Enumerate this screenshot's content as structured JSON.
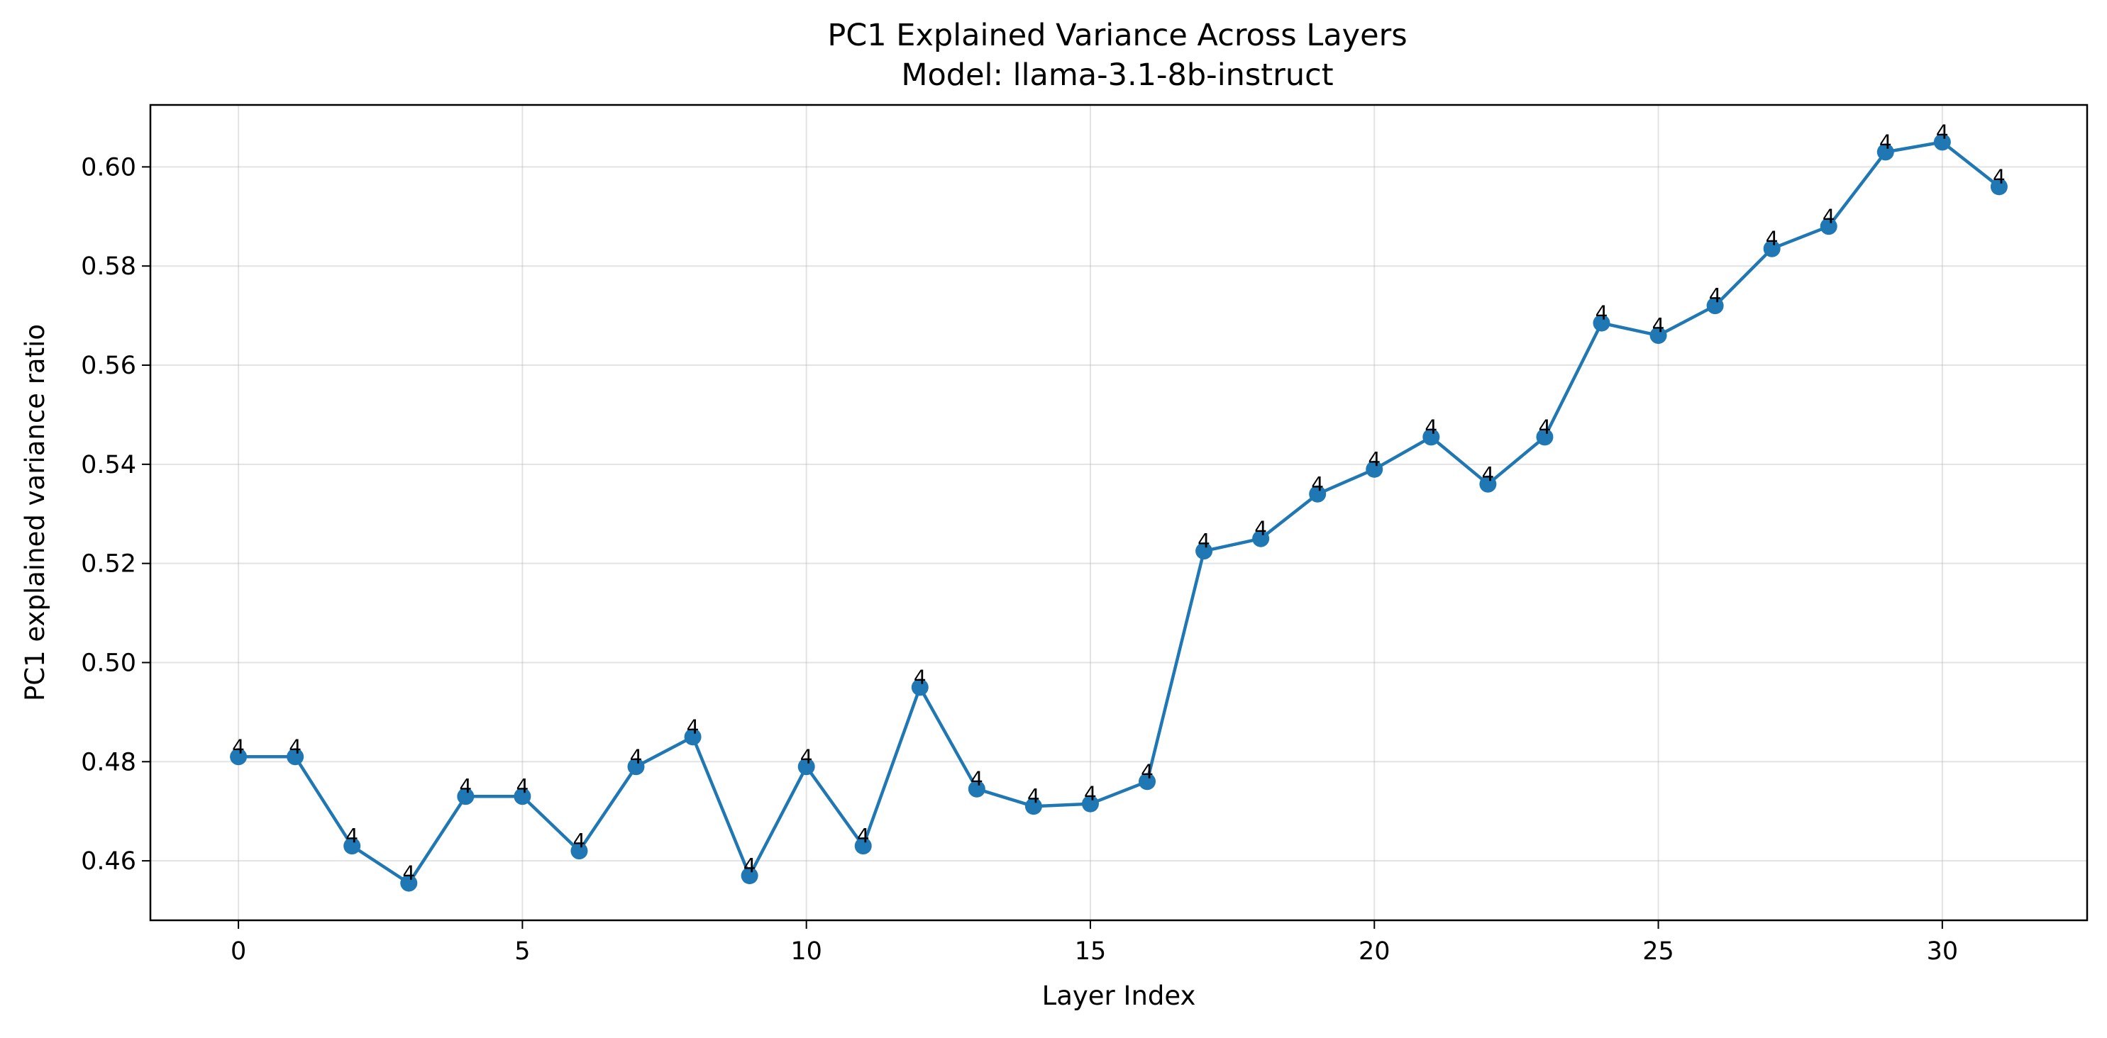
{
  "chart_data": {
    "type": "line",
    "title": "PC1 Explained Variance Across Layers",
    "subtitle": "Model: llama-3.1-8b-instruct",
    "xlabel": "Layer Index",
    "ylabel": "PC1 explained variance ratio",
    "xlim": [
      -1.55,
      32.55
    ],
    "ylim": [
      0.448,
      0.6125
    ],
    "xticks": [
      0,
      5,
      10,
      15,
      20,
      25,
      30
    ],
    "yticks": [
      0.46,
      0.48,
      0.5,
      0.52,
      0.54,
      0.56,
      0.58,
      0.6
    ],
    "ytick_labels": [
      "0.46",
      "0.48",
      "0.50",
      "0.52",
      "0.54",
      "0.56",
      "0.58",
      "0.60"
    ],
    "grid": true,
    "series": [
      {
        "color": "#1f77b4",
        "x": [
          0,
          1,
          2,
          3,
          4,
          5,
          6,
          7,
          8,
          9,
          10,
          11,
          12,
          13,
          14,
          15,
          16,
          17,
          18,
          19,
          20,
          21,
          22,
          23,
          24,
          25,
          26,
          27,
          28,
          29,
          30,
          31
        ],
        "y": [
          0.481,
          0.481,
          0.463,
          0.4555,
          0.473,
          0.473,
          0.462,
          0.479,
          0.485,
          0.457,
          0.479,
          0.463,
          0.495,
          0.4745,
          0.471,
          0.4715,
          0.476,
          0.5225,
          0.525,
          0.534,
          0.539,
          0.5455,
          0.536,
          0.5455,
          0.5685,
          0.566,
          0.572,
          0.5835,
          0.588,
          0.603,
          0.605,
          0.596
        ],
        "point_labels": [
          "4",
          "4",
          "4",
          "4",
          "4",
          "4",
          "4",
          "4",
          "4",
          "4",
          "4",
          "4",
          "4",
          "4",
          "4",
          "4",
          "4",
          "4",
          "4",
          "4",
          "4",
          "4",
          "4",
          "4",
          "4",
          "4",
          "4",
          "4",
          "4",
          "4",
          "4",
          "4"
        ]
      }
    ]
  }
}
